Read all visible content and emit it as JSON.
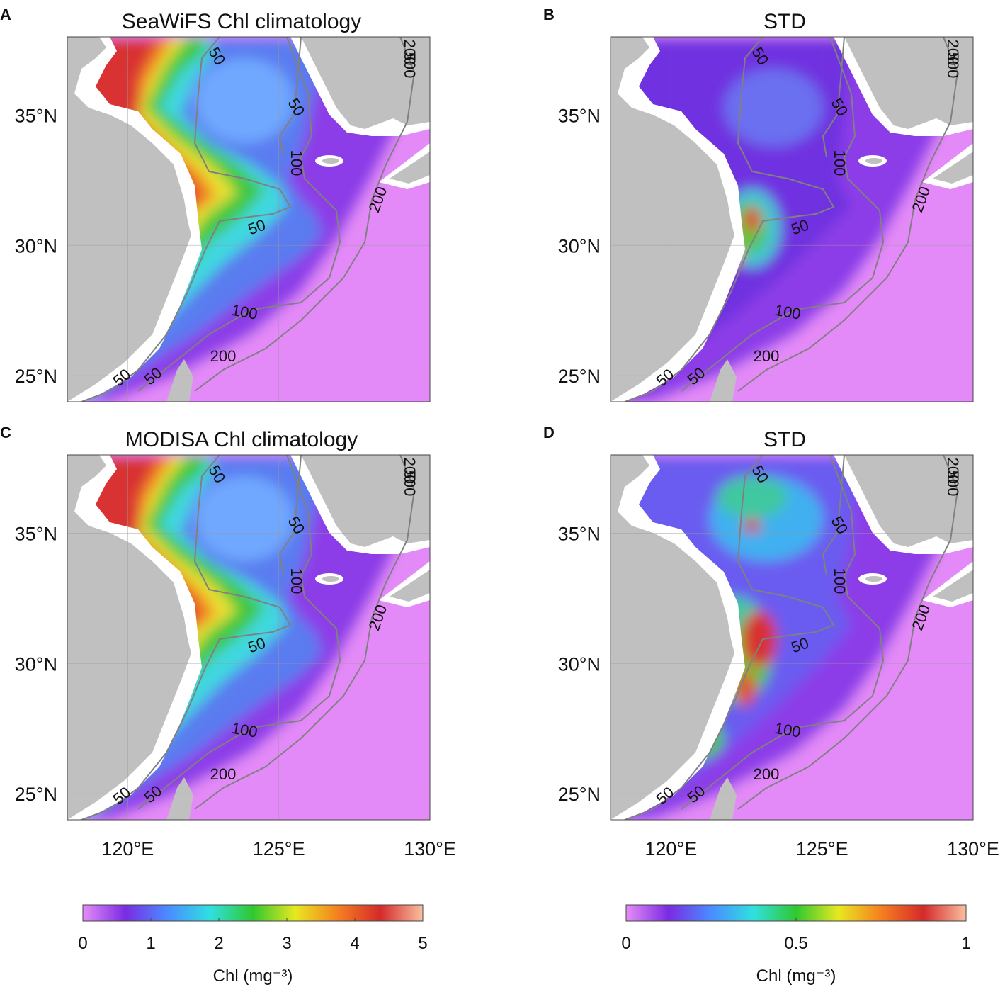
{
  "panels": [
    {
      "letter": "A",
      "title": "SeaWiFS Chl climatology",
      "field": "clim",
      "yticks": [
        {
          "value": 35,
          "label": "35°N"
        },
        {
          "value": 30,
          "label": "30°N"
        },
        {
          "value": 25,
          "label": "25°N"
        }
      ],
      "contour_labels": [
        50,
        50,
        100,
        200,
        50,
        100,
        200,
        50,
        50,
        200,
        500
      ]
    },
    {
      "letter": "B",
      "title": "STD",
      "field": "stdB",
      "yticks": [
        {
          "value": 35,
          "label": "35°N"
        },
        {
          "value": 30,
          "label": "30°N"
        },
        {
          "value": 25,
          "label": "25°N"
        }
      ],
      "contour_labels": [
        50,
        50,
        100,
        200,
        50,
        100,
        200,
        50,
        50,
        200,
        500
      ]
    },
    {
      "letter": "C",
      "title": "MODISA Chl climatology",
      "field": "clim",
      "yticks": [
        {
          "value": 35,
          "label": "35°N"
        },
        {
          "value": 30,
          "label": "30°N"
        },
        {
          "value": 25,
          "label": "25°N"
        }
      ],
      "xticks": [
        {
          "value": 120,
          "label": "120°E"
        },
        {
          "value": 125,
          "label": "125°E"
        },
        {
          "value": 130,
          "label": "130°E"
        }
      ],
      "contour_labels": [
        50,
        50,
        100,
        200,
        50,
        100,
        200,
        50,
        50,
        200,
        500
      ]
    },
    {
      "letter": "D",
      "title": "STD",
      "field": "stdD",
      "yticks": [
        {
          "value": 35,
          "label": "35°N"
        },
        {
          "value": 30,
          "label": "30°N"
        },
        {
          "value": 25,
          "label": "25°N"
        }
      ],
      "xticks": [
        {
          "value": 120,
          "label": "120°E"
        },
        {
          "value": 125,
          "label": "125°E"
        },
        {
          "value": 130,
          "label": "130°E"
        }
      ],
      "contour_labels": [
        50,
        50,
        100,
        200,
        50,
        100,
        200,
        50,
        50,
        200,
        500
      ]
    }
  ],
  "xlim": [
    118,
    130
  ],
  "ylim": [
    24,
    38
  ],
  "grid": true,
  "colorbars": [
    {
      "lim": [
        0,
        5
      ],
      "ticks": [
        0,
        1,
        2,
        3,
        4,
        5
      ],
      "label": "Chl (mg⁻³)",
      "colors": [
        "#e58cf8",
        "#7a2be2",
        "#4a8cff",
        "#30e0e0",
        "#30c830",
        "#e8e820",
        "#f58020",
        "#d42a2a",
        "#fac0a0"
      ]
    },
    {
      "lim": [
        0,
        1
      ],
      "ticks": [
        0,
        0.5,
        1
      ],
      "label": "Chl (mg⁻³)",
      "colors": [
        "#e58cf8",
        "#7a2be2",
        "#4a8cff",
        "#30e0e0",
        "#30c830",
        "#e8e820",
        "#f58020",
        "#d42a2a",
        "#fac0a0"
      ]
    }
  ]
}
